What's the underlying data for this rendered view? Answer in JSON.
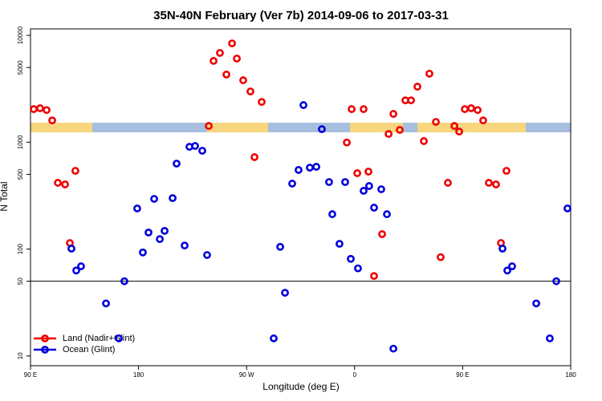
{
  "chart_data": {
    "type": "scatter",
    "title": "35N-40N February (Ver 7b)   2014-09-06 to 2017-03-31",
    "x_label": "Longitude (deg E)",
    "y_label": "N Total",
    "log_y": true,
    "hline": 50,
    "legend": "bottom-left",
    "xlim": [
      90,
      540
    ],
    "ylim": [
      8.1,
      11500
    ],
    "xticks": [
      {
        "value": 90,
        "label": "90 E"
      },
      180,
      {
        "value": 270,
        "label": "90 W"
      },
      {
        "value": 360,
        "label": "0"
      },
      {
        "value": 450,
        "label": "90 E"
      },
      {
        "value": 540,
        "label": "180"
      }
    ],
    "yticks": [
      10,
      50,
      100,
      500,
      1000,
      5000,
      10000
    ],
    "series": [
      {
        "name": "Land (Nadir+Glint)",
        "color": "#ee0000",
        "x": [
          92.7,
          98.0,
          103.4,
          108.1,
          112.8,
          118.8,
          122.8,
          127.4,
          238.5,
          242.5,
          247.8,
          253.2,
          257.9,
          261.9,
          267.2,
          273.2,
          276.6,
          282.6,
          353.5,
          357.5,
          362.2,
          367.5,
          371.5,
          376.2,
          382.9,
          388.3,
          392.3,
          397.6,
          402.3,
          407.0,
          412.3,
          417.7,
          422.3,
          427.7,
          431.7,
          437.7,
          443.1,
          447.1,
          451.8,
          457.1,
          462.5,
          467.1,
          471.8,
          477.8,
          481.9,
          486.5
        ],
        "values": [
          2040,
          2080,
          2000,
          1600,
          417,
          403,
          114,
          540,
          1419,
          5770,
          6850,
          4300,
          8410,
          6070,
          3800,
          2985,
          725,
          2380,
          994,
          2040,
          513,
          2040,
          531,
          56,
          138,
          1195,
          1840,
          1303,
          2465,
          2465,
          3310,
          1024,
          4380,
          1550,
          84,
          417,
          1419,
          1259,
          2040,
          2080,
          2000,
          1600,
          417,
          403,
          114,
          540
        ]
      },
      {
        "name": "Ocean (Glint)",
        "color": "#0000dd",
        "x": [
          124.1,
          128.1,
          132.1,
          152.9,
          163.6,
          168.2,
          178.9,
          183.6,
          188.3,
          193.0,
          197.7,
          201.7,
          208.4,
          211.7,
          218.4,
          222.4,
          227.1,
          233.1,
          237.1,
          292.6,
          298.0,
          302.0,
          308.0,
          313.3,
          317.4,
          322.7,
          328.1,
          332.7,
          338.7,
          341.4,
          347.4,
          352.1,
          356.8,
          362.8,
          367.5,
          372.1,
          376.2,
          382.2,
          386.9,
          392.3,
          483.2,
          487.2,
          491.2,
          511.3,
          522.6,
          528.0,
          537.3
        ],
        "values": [
          101,
          63,
          69,
          31,
          14.6,
          50,
          240,
          93,
          143,
          295,
          124,
          148,
          300,
          631,
          108,
          906,
          922,
          832,
          88,
          14.6,
          105,
          39,
          410,
          550,
          2225,
          578,
          589,
          1325,
          424,
          212,
          112,
          424,
          81,
          66,
          351,
          389,
          244,
          363,
          212,
          11.7,
          101,
          63,
          69,
          31,
          14.6,
          50,
          240
        ]
      }
    ]
  }
}
